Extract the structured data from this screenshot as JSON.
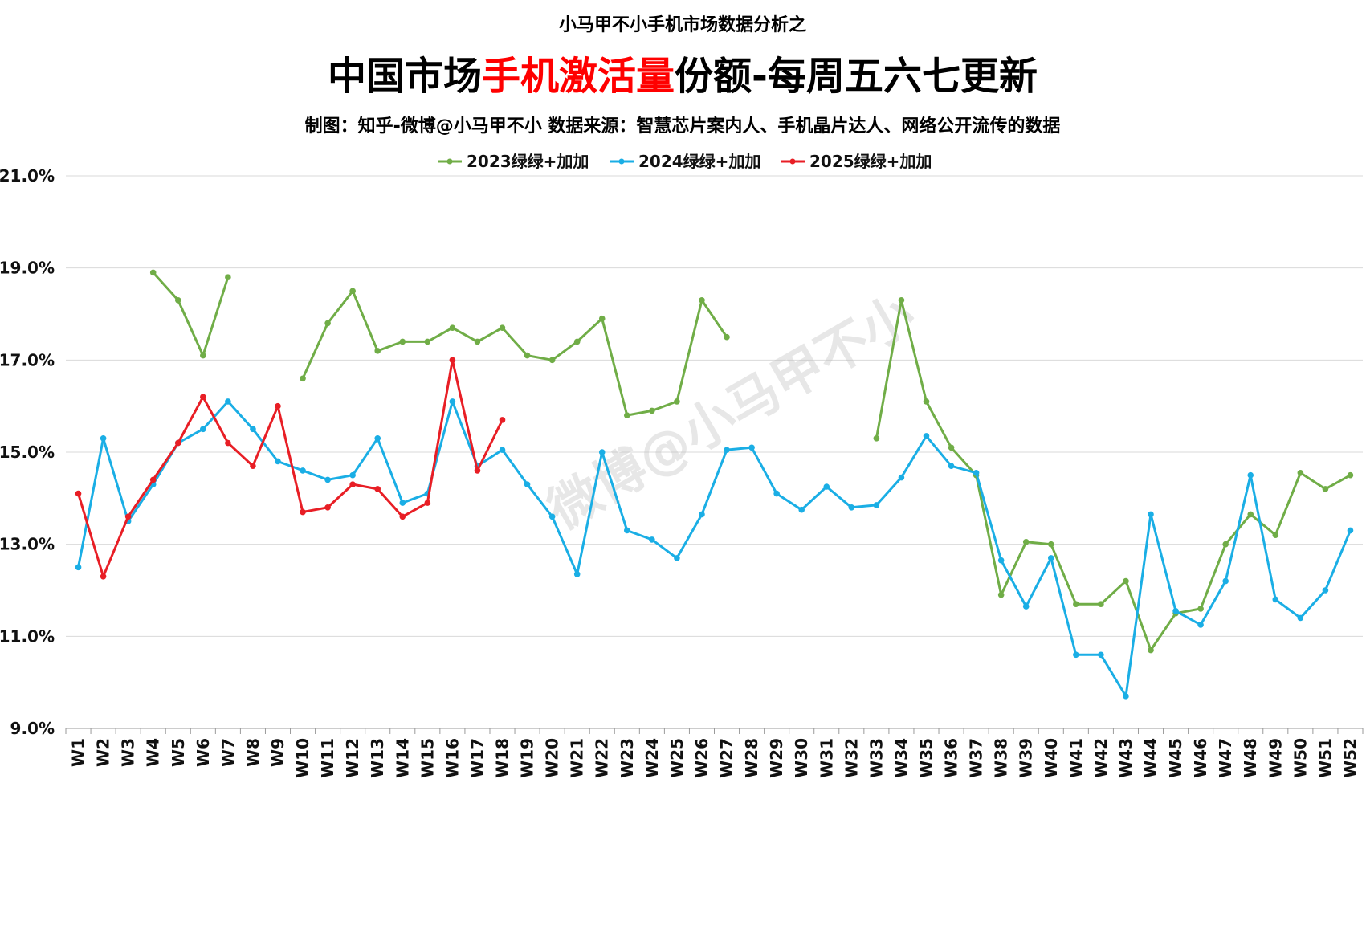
{
  "chart_data": {
    "type": "line",
    "supertitle": "小马甲不小手机市场数据分析之",
    "title_parts": [
      {
        "text": "中国市场",
        "color": "#000000"
      },
      {
        "text": "手机激活量",
        "color": "#ff0000"
      },
      {
        "text": "份额-每周五六七更新",
        "color": "#000000"
      }
    ],
    "subtitle": "制图：知乎-微博@小马甲不小  数据来源：智慧芯片案内人、手机晶片达人、网络公开流传的数据",
    "watermark": "微博@小马甲不小",
    "grid": true,
    "legend_position": "top",
    "ylim": [
      9,
      21
    ],
    "yticks": [
      9,
      11,
      13,
      15,
      17,
      19,
      21
    ],
    "ytick_labels": [
      "9.0%",
      "11.0%",
      "13.0%",
      "15.0%",
      "17.0%",
      "19.0%",
      "21.0%"
    ],
    "categories": [
      "W1",
      "W2",
      "W3",
      "W4",
      "W5",
      "W6",
      "W7",
      "W8",
      "W9",
      "W10",
      "W11",
      "W12",
      "W13",
      "W14",
      "W15",
      "W16",
      "W17",
      "W18",
      "W19",
      "W20",
      "W21",
      "W22",
      "W23",
      "W24",
      "W25",
      "W26",
      "W27",
      "W28",
      "W29",
      "W30",
      "W31",
      "W32",
      "W33",
      "W34",
      "W35",
      "W36",
      "W37",
      "W38",
      "W39",
      "W40",
      "W41",
      "W42",
      "W43",
      "W44",
      "W45",
      "W46",
      "W47",
      "W48",
      "W49",
      "W50",
      "W51",
      "W52"
    ],
    "series": [
      {
        "name": "2023绿绿+加加",
        "color": "#70ad47",
        "values": [
          null,
          null,
          null,
          18.9,
          18.3,
          17.1,
          18.8,
          null,
          null,
          16.6,
          17.8,
          18.5,
          17.2,
          17.4,
          17.4,
          17.7,
          17.4,
          17.7,
          17.1,
          17.0,
          17.4,
          17.9,
          15.8,
          15.9,
          16.1,
          18.3,
          17.5,
          null,
          null,
          null,
          null,
          null,
          15.3,
          18.3,
          16.1,
          15.1,
          14.5,
          11.9,
          13.05,
          13.0,
          11.7,
          11.7,
          12.2,
          10.7,
          11.5,
          11.6,
          13.0,
          13.65,
          13.2,
          14.55,
          14.2,
          14.5
        ]
      },
      {
        "name": "2024绿绿+加加",
        "color": "#1aaee5",
        "values": [
          12.5,
          15.3,
          13.5,
          14.3,
          15.2,
          15.5,
          16.1,
          15.5,
          14.8,
          14.6,
          14.4,
          14.5,
          15.3,
          13.9,
          14.1,
          16.1,
          14.7,
          15.05,
          14.3,
          13.6,
          12.35,
          15.0,
          13.3,
          13.1,
          12.7,
          13.65,
          15.05,
          15.1,
          14.1,
          13.75,
          14.25,
          13.8,
          13.85,
          14.45,
          15.35,
          14.7,
          14.55,
          12.65,
          11.65,
          12.7,
          10.6,
          10.6,
          9.7,
          13.65,
          11.55,
          11.25,
          12.2,
          14.5,
          11.8,
          11.4,
          12.0,
          13.3
        ]
      },
      {
        "name": "2025绿绿+加加",
        "color": "#e81e25",
        "values": [
          14.1,
          12.3,
          13.6,
          14.4,
          15.2,
          16.2,
          15.2,
          14.7,
          16.0,
          13.7,
          13.8,
          14.3,
          14.2,
          13.6,
          13.9,
          17.0,
          14.6,
          15.7,
          null,
          null,
          null,
          null,
          null,
          null,
          null,
          null,
          null,
          null,
          null,
          null,
          null,
          null,
          null,
          null,
          null,
          null,
          null,
          null,
          null,
          null,
          null,
          null,
          null,
          null,
          null,
          null,
          null,
          null,
          null,
          null,
          null,
          null
        ]
      }
    ]
  }
}
